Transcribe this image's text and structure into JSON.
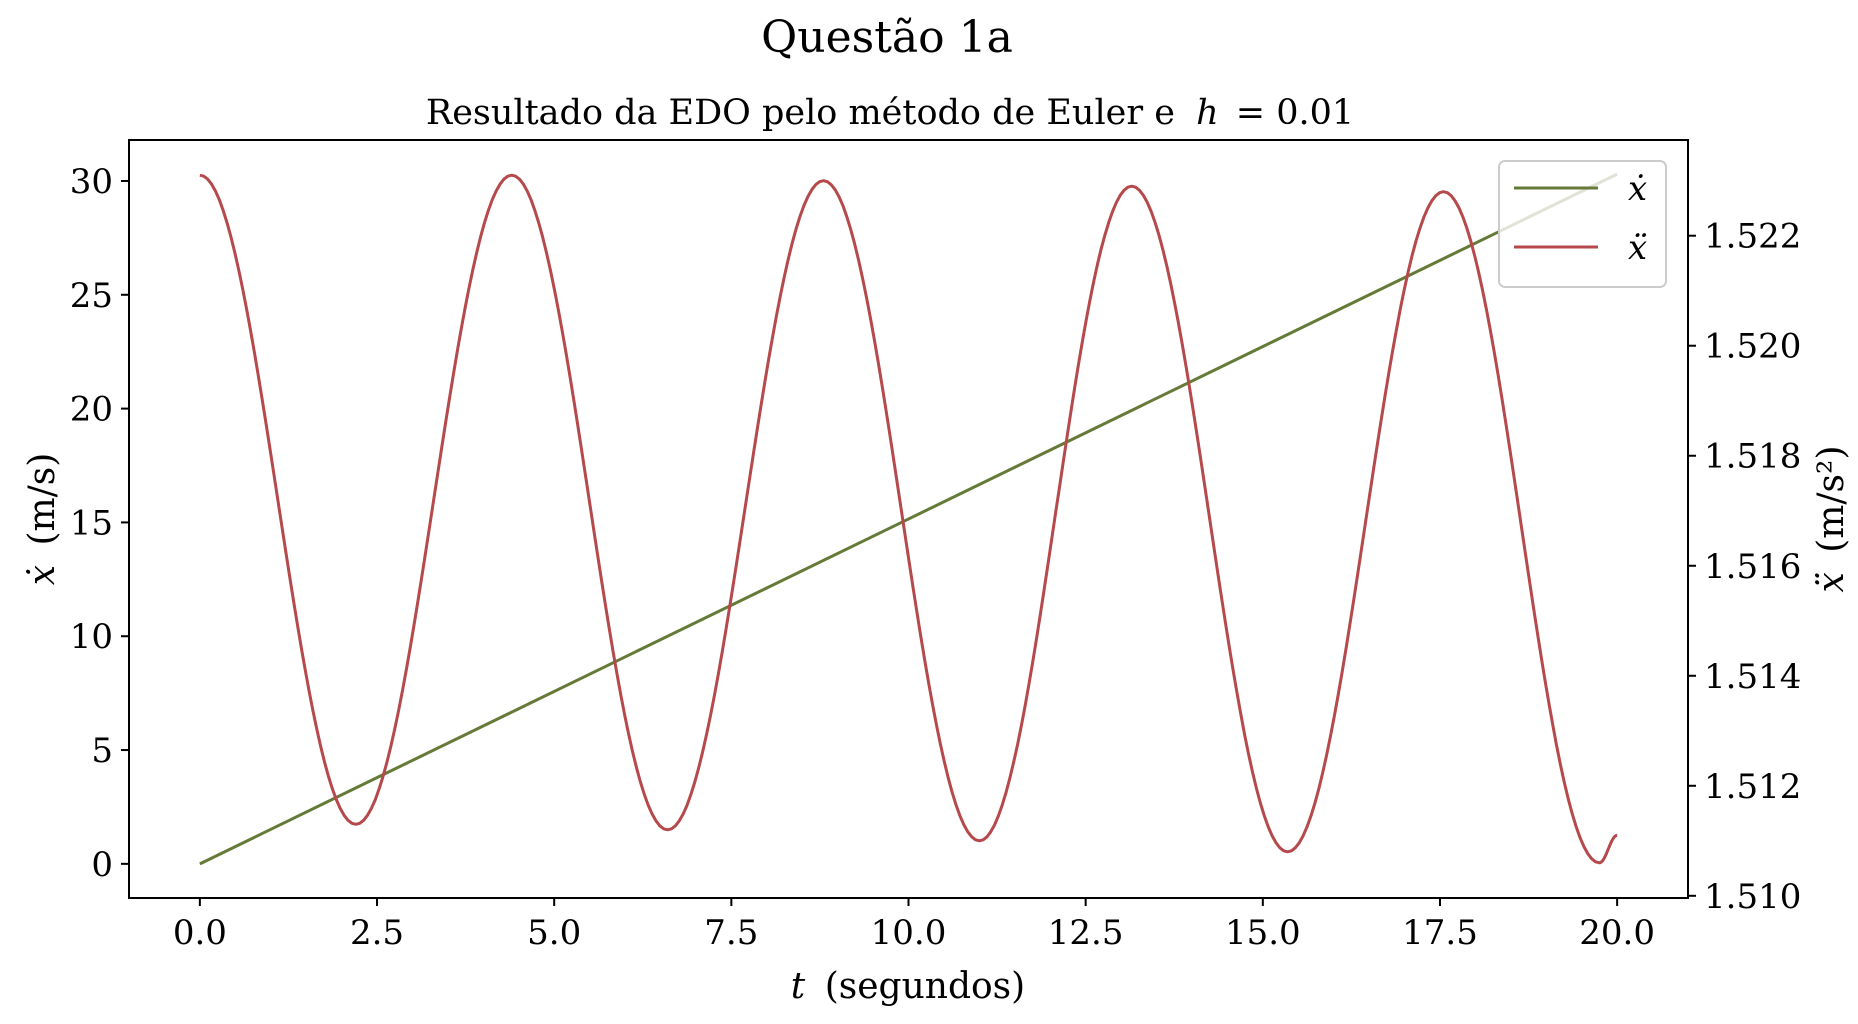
{
  "figure": {
    "suptitle": "Questão 1a",
    "subtitle_text": "Resultado da EDO pelo método de Euler e",
    "subtitle_var": "h",
    "subtitle_eq": "= 0.01"
  },
  "chart_data": {
    "type": "line",
    "title": "Resultado da EDO pelo método de Euler e h = 0.01",
    "xlabel": {
      "var": "t",
      "unit": "(segundos)"
    },
    "ylabel_left": {
      "var": "ẋ",
      "unit": "(m/s)"
    },
    "ylabel_right": {
      "var": "ẍ",
      "unit": "(m/s²)"
    },
    "xlim": [
      -1.0,
      21.0
    ],
    "ylim_left": [
      -1.5,
      31.8
    ],
    "ylim_right": [
      1.50996,
      1.52374
    ],
    "x_ticks": [
      0.0,
      2.5,
      5.0,
      7.5,
      10.0,
      12.5,
      15.0,
      17.5,
      20.0
    ],
    "x_tick_labels": [
      "0.0",
      "2.5",
      "5.0",
      "7.5",
      "10.0",
      "12.5",
      "15.0",
      "17.5",
      "20.0"
    ],
    "y_left_ticks": [
      0,
      5,
      10,
      15,
      20,
      25,
      30
    ],
    "y_left_tick_labels": [
      "0",
      "5",
      "10",
      "15",
      "20",
      "25",
      "30"
    ],
    "y_right_ticks": [
      1.51,
      1.512,
      1.514,
      1.516,
      1.518,
      1.52,
      1.522
    ],
    "y_right_tick_labels": [
      "1.510",
      "1.512",
      "1.514",
      "1.516",
      "1.518",
      "1.520",
      "1.522"
    ],
    "grid": false,
    "legend_position": "top-right",
    "series": [
      {
        "name": "ẋ",
        "axis": "left",
        "color": "#667a38",
        "x": [
          0.0,
          20.0
        ],
        "y": [
          0.0,
          30.3
        ]
      },
      {
        "name": "ẍ",
        "axis": "right",
        "color": "#b5494b",
        "x": [
          0.0,
          2.2,
          4.4,
          6.6,
          8.8,
          11.0,
          13.15,
          15.35,
          17.55,
          19.75,
          20.0
        ],
        "y": [
          1.5231,
          1.5113,
          1.5231,
          1.5112,
          1.523,
          1.511,
          1.5229,
          1.5108,
          1.5228,
          1.5106,
          1.5111
        ]
      }
    ]
  }
}
